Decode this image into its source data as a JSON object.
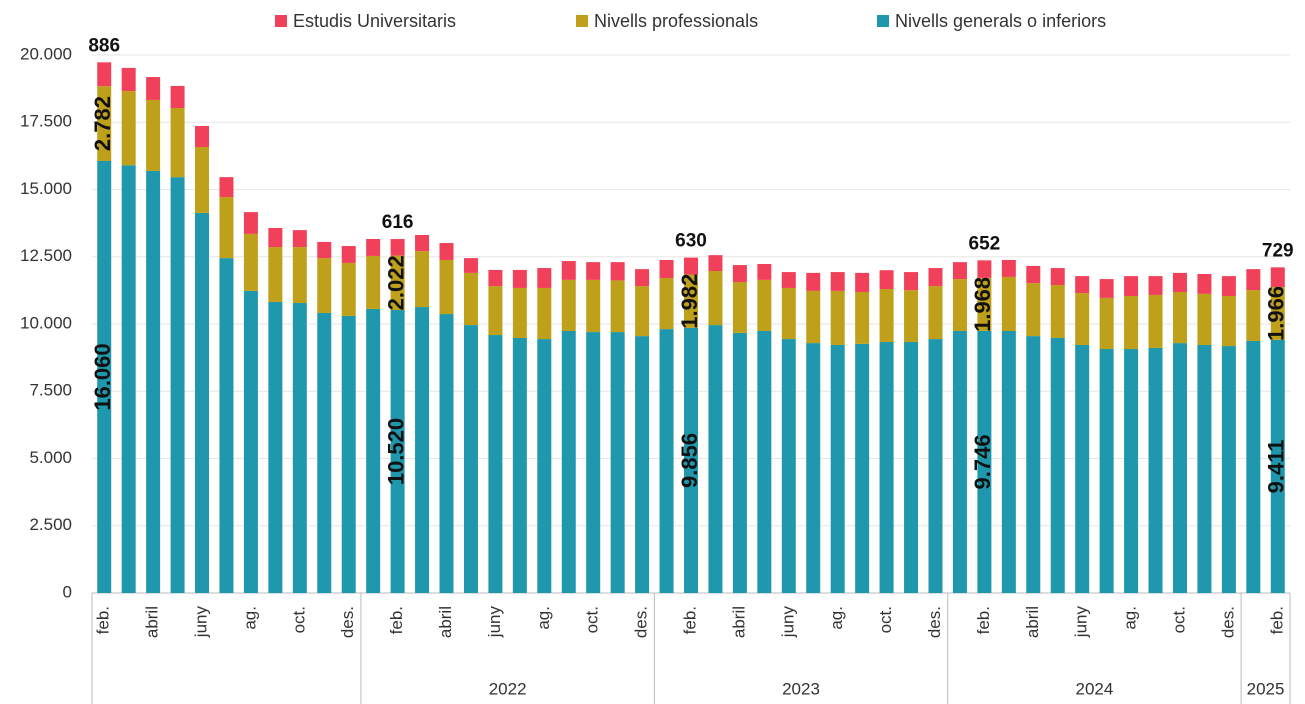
{
  "chart_data": {
    "type": "stacked_bar",
    "categories": [
      "feb.",
      null,
      "abril",
      null,
      "juny",
      null,
      "ag.",
      null,
      "oct.",
      null,
      "des.",
      null,
      "feb.",
      null,
      "abril",
      null,
      "juny",
      null,
      "ag.",
      null,
      "oct.",
      null,
      "des.",
      null,
      "feb.",
      null,
      "abril",
      null,
      "juny",
      null,
      "ag.",
      null,
      "oct.",
      null,
      "des.",
      null,
      "feb.",
      null,
      "abril",
      null,
      "juny",
      null,
      "ag.",
      null,
      "oct.",
      null,
      "des.",
      null,
      "feb."
    ],
    "years": [
      null,
      null,
      null,
      null,
      null,
      null,
      null,
      null,
      null,
      null,
      null,
      "2022",
      "2022",
      "2022",
      "2022",
      "2022",
      "2022",
      "2022",
      "2022",
      "2022",
      "2022",
      "2022",
      "2022",
      "2023",
      "2023",
      "2023",
      "2023",
      "2023",
      "2023",
      "2023",
      "2023",
      "2023",
      "2023",
      "2023",
      "2023",
      "2024",
      "2024",
      "2024",
      "2024",
      "2024",
      "2024",
      "2024",
      "2024",
      "2024",
      "2024",
      "2024",
      "2024",
      "2025",
      "2025"
    ],
    "series": [
      {
        "name": "Nivells generals o inferiors",
        "color": "#1f97ad",
        "values": [
          16060,
          15900,
          15690,
          15460,
          14130,
          12450,
          11230,
          10820,
          10780,
          10410,
          10300,
          10560,
          10520,
          10630,
          10370,
          9960,
          9590,
          9480,
          9440,
          9740,
          9700,
          9700,
          9550,
          9810,
          9856,
          9960,
          9670,
          9740,
          9440,
          9290,
          9220,
          9260,
          9330,
          9330,
          9440,
          9740,
          9746,
          9740,
          9550,
          9480,
          9220,
          9070,
          9070,
          9110,
          9290,
          9220,
          9180,
          9370,
          9411
        ],
        "value_labels": [
          "16.060",
          null,
          null,
          null,
          null,
          null,
          null,
          null,
          null,
          null,
          null,
          null,
          "10.520",
          null,
          null,
          null,
          null,
          null,
          null,
          null,
          null,
          null,
          null,
          null,
          "9.856",
          null,
          null,
          null,
          null,
          null,
          null,
          null,
          null,
          null,
          null,
          null,
          "9.746",
          null,
          null,
          null,
          null,
          null,
          null,
          null,
          null,
          null,
          null,
          null,
          "9.411"
        ]
      },
      {
        "name": "Nivells professionals",
        "color": "#bfa01a",
        "values": [
          2782,
          2760,
          2640,
          2570,
          2450,
          2270,
          2120,
          2040,
          2080,
          2040,
          1970,
          1970,
          2022,
          2080,
          2010,
          1940,
          1820,
          1860,
          1900,
          1900,
          1940,
          1920,
          1860,
          1900,
          1982,
          2010,
          1890,
          1900,
          1900,
          1940,
          2010,
          1930,
          1970,
          1930,
          1970,
          1930,
          1968,
          2010,
          1970,
          1970,
          1930,
          1900,
          1970,
          1970,
          1900,
          1900,
          1860,
          1890,
          1966
        ],
        "value_labels": [
          "2.782",
          null,
          null,
          null,
          null,
          null,
          null,
          null,
          null,
          null,
          null,
          null,
          "2.022",
          null,
          null,
          null,
          null,
          null,
          null,
          null,
          null,
          null,
          null,
          null,
          "1.982",
          null,
          null,
          null,
          null,
          null,
          null,
          null,
          null,
          null,
          null,
          null,
          "1.968",
          null,
          null,
          null,
          null,
          null,
          null,
          null,
          null,
          null,
          null,
          null,
          "1.966"
        ]
      },
      {
        "name": "Estudis Universitaris",
        "color": "#f0405a",
        "values": [
          886,
          860,
          850,
          820,
          780,
          740,
          810,
          710,
          630,
          600,
          630,
          630,
          616,
          600,
          630,
          550,
          600,
          670,
          740,
          700,
          660,
          680,
          630,
          670,
          630,
          590,
          630,
          590,
          590,
          670,
          700,
          710,
          700,
          670,
          670,
          630,
          652,
          630,
          640,
          630,
          630,
          700,
          740,
          700,
          710,
          740,
          740,
          780,
          729
        ],
        "show_labels": [
          0,
          12,
          24,
          36,
          48
        ]
      }
    ],
    "ylim": [
      0,
      20000
    ],
    "yticks": [
      0,
      {
        "value": 2500,
        "label": "2.500"
      },
      {
        "value": 5000,
        "label": "5.000"
      },
      {
        "value": 7500,
        "label": "7.500"
      },
      {
        "value": 10000,
        "label": "10.000"
      },
      {
        "value": 12500,
        "label": "12.500"
      },
      {
        "value": 15000,
        "label": "15.000"
      },
      {
        "value": 17500,
        "label": "17.500"
      },
      {
        "value": 20000,
        "label": "20.000"
      }
    ],
    "grid": true
  }
}
